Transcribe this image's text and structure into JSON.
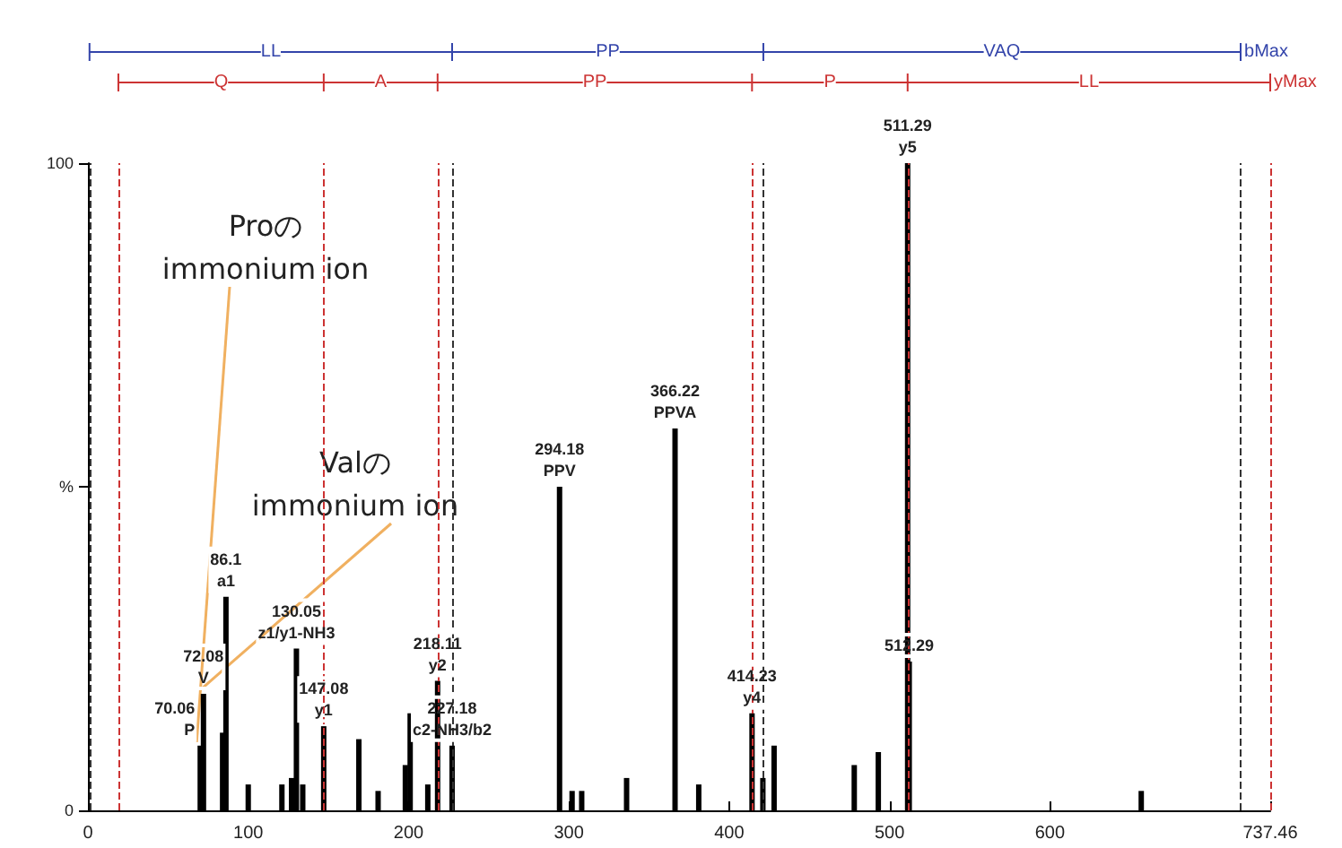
{
  "chart_data": {
    "type": "bar",
    "x": [
      70.06,
      72.08,
      84,
      86.1,
      100,
      121,
      127,
      130.05,
      134,
      147.08,
      169,
      181,
      198,
      201,
      212,
      218.11,
      227.18,
      294.18,
      302,
      308,
      336,
      366.22,
      381,
      414.23,
      421,
      428,
      478,
      493,
      511.29,
      512.29,
      657
    ],
    "values": [
      10,
      18,
      12,
      33,
      4,
      4,
      5,
      25,
      4,
      13,
      11,
      3,
      7,
      15,
      4,
      20,
      10,
      50,
      3,
      3,
      5,
      59,
      4,
      15,
      5,
      10,
      7,
      9,
      100,
      23,
      3
    ],
    "color": "#000000",
    "xlim": [
      0,
      737.46
    ],
    "xticks": [
      0,
      100,
      200,
      300,
      400,
      500,
      600,
      737.46
    ],
    "ylim": [
      0,
      100
    ],
    "yticks": [
      0,
      {
        "value": 50,
        "label": "%"
      },
      100
    ],
    "grid": false,
    "ref_lines": [
      {
        "axis": "x",
        "value": 1,
        "color": "#333333",
        "line_style": "dashed"
      },
      {
        "axis": "x",
        "value": 227.18,
        "color": "#333333",
        "line_style": "dashed"
      },
      {
        "axis": "x",
        "value": 421.3,
        "color": "#333333",
        "line_style": "dashed"
      },
      {
        "axis": "x",
        "value": 719,
        "color": "#333333",
        "line_style": "dashed"
      },
      {
        "axis": "x",
        "value": 19,
        "color": "#cc3333",
        "line_style": "dashed"
      },
      {
        "axis": "x",
        "value": 147.08,
        "color": "#cc3333",
        "line_style": "dashed"
      },
      {
        "axis": "x",
        "value": 218.11,
        "color": "#cc3333",
        "line_style": "dashed"
      },
      {
        "axis": "x",
        "value": 414.23,
        "color": "#cc3333",
        "line_style": "dashed"
      },
      {
        "axis": "x",
        "value": 511.29,
        "color": "#cc3333",
        "line_style": "dashed"
      },
      {
        "axis": "x",
        "value": 737.46,
        "color": "#cc3333",
        "line_style": "dashed"
      }
    ],
    "annotations": [
      {
        "text": "Proの\nimmonium ion",
        "x": 70.06,
        "y": 10
      },
      {
        "text": "Valの\nimmonium ion",
        "x": 72.08,
        "y": 18
      },
      "LL",
      "PP",
      "VAQ",
      "bMax",
      "Q",
      "A",
      "PP",
      "P",
      "LL",
      "yMax",
      {
        "text": "70.06\nP",
        "x": 70.06,
        "y": 10
      },
      {
        "text": "72.08\nV",
        "x": 72.08,
        "y": 18
      },
      {
        "text": "86.1\na1",
        "x": 86.1,
        "y": 33
      },
      {
        "text": "130.05\nz1/y1-NH3",
        "x": 130.05,
        "y": 25
      },
      {
        "text": "147.08\ny1",
        "x": 147.08,
        "y": 13
      },
      {
        "text": "218.11\ny2",
        "x": 218.11,
        "y": 20
      },
      {
        "text": "227.18\nc2-NH3/b2",
        "x": 227.18,
        "y": 10
      },
      {
        "text": "294.18\nPPV",
        "x": 294.18,
        "y": 50
      },
      {
        "text": "366.22\nPPVA",
        "x": 366.22,
        "y": 59
      },
      {
        "text": "414.23\ny4",
        "x": 414.23,
        "y": 15
      },
      {
        "text": "511.29\ny5",
        "x": 511.29,
        "y": 100
      },
      {
        "text": "512.29",
        "x": 512.29,
        "y": 23
      }
    ]
  }
}
